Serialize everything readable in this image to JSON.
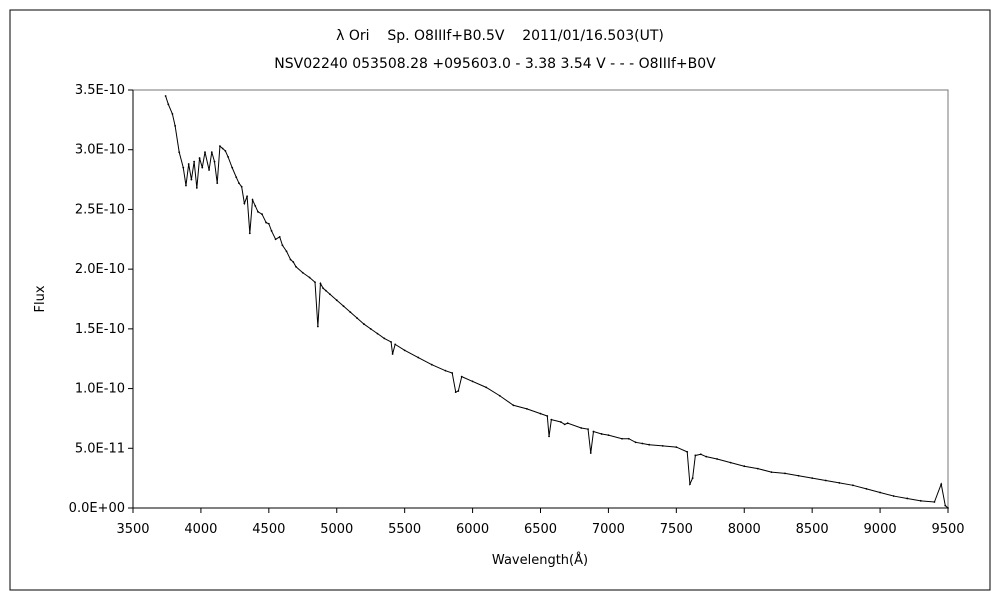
{
  "chart_data": {
    "type": "line",
    "title": "λ Ori    Sp. O8IIIf+B0.5V    2011/01/16.503(UT)",
    "subtitle": "NSV02240 053508.28 +095603.0 - 3.38 3.54 V - - - O8IIIf+B0V",
    "xlabel": "Wavelength(Å)",
    "ylabel": "Flux",
    "xlim": [
      3500,
      9500
    ],
    "ylim": [
      0,
      3.5e-10
    ],
    "x_ticks": [
      3500,
      4000,
      4500,
      5000,
      5500,
      6000,
      6500,
      7000,
      7500,
      8000,
      8500,
      9000,
      9500
    ],
    "x_tick_labels": [
      "3500",
      "4000",
      "4500",
      "5000",
      "5500",
      "6000",
      "6500",
      "7000",
      "7500",
      "8000",
      "8500",
      "9000",
      "9500"
    ],
    "y_ticks": [
      0,
      5e-11,
      1e-10,
      1.5e-10,
      2e-10,
      2.5e-10,
      3e-10,
      3.5e-10
    ],
    "y_tick_labels": [
      "0.0E+00",
      "5.0E-11",
      "1.0E-10",
      "1.5E-10",
      "2.0E-10",
      "2.5E-10",
      "3.0E-10",
      "3.5E-10"
    ],
    "grid": false,
    "line_color": "#000000",
    "series": [
      {
        "x": [
          3740,
          3760,
          3790,
          3810,
          3840,
          3870,
          3890,
          3910,
          3930,
          3950,
          3970,
          3990,
          4010,
          4030,
          4060,
          4080,
          4100,
          4120,
          4140,
          4160,
          4180,
          4200,
          4230,
          4260,
          4280,
          4300,
          4320,
          4340,
          4360,
          4380,
          4400,
          4420,
          4450,
          4480,
          4500,
          4520,
          4550,
          4580,
          4600,
          4630,
          4660,
          4680,
          4700,
          4750,
          4800,
          4840,
          4861,
          4880,
          4900,
          4920,
          4950,
          5000,
          5050,
          5100,
          5150,
          5200,
          5250,
          5300,
          5350,
          5400,
          5411,
          5430,
          5500,
          5600,
          5700,
          5800,
          5850,
          5876,
          5895,
          5920,
          6000,
          6100,
          6200,
          6300,
          6400,
          6500,
          6550,
          6563,
          6580,
          6650,
          6678,
          6700,
          6800,
          6850,
          6870,
          6890,
          6950,
          7000,
          7100,
          7150,
          7200,
          7250,
          7300,
          7400,
          7500,
          7580,
          7600,
          7620,
          7640,
          7680,
          7720,
          7800,
          7900,
          8000,
          8100,
          8200,
          8300,
          8400,
          8500,
          8600,
          8700,
          8800,
          8900,
          9000,
          9100,
          9200,
          9300,
          9400,
          9450,
          9480,
          9500
        ],
        "y": [
          3.45e-10,
          3.38e-10,
          3.3e-10,
          3.2e-10,
          2.98e-10,
          2.85e-10,
          2.7e-10,
          2.88e-10,
          2.75e-10,
          2.9e-10,
          2.68e-10,
          2.93e-10,
          2.85e-10,
          2.98e-10,
          2.83e-10,
          2.98e-10,
          2.9e-10,
          2.72e-10,
          3.03e-10,
          3.01e-10,
          2.99e-10,
          2.94e-10,
          2.85e-10,
          2.77e-10,
          2.72e-10,
          2.69e-10,
          2.55e-10,
          2.61e-10,
          2.3e-10,
          2.58e-10,
          2.53e-10,
          2.48e-10,
          2.46e-10,
          2.39e-10,
          2.38e-10,
          2.32e-10,
          2.25e-10,
          2.27e-10,
          2.2e-10,
          2.15e-10,
          2.08e-10,
          2.06e-10,
          2.02e-10,
          1.97e-10,
          1.93e-10,
          1.89e-10,
          1.52e-10,
          1.88e-10,
          1.84e-10,
          1.82e-10,
          1.79e-10,
          1.74e-10,
          1.69e-10,
          1.64e-10,
          1.59e-10,
          1.54e-10,
          1.5e-10,
          1.46e-10,
          1.42e-10,
          1.39e-10,
          1.29e-10,
          1.37e-10,
          1.32e-10,
          1.26e-10,
          1.2e-10,
          1.15e-10,
          1.13e-10,
          9.7e-11,
          9.8e-11,
          1.1e-10,
          1.06e-10,
          1.01e-10,
          9.4e-11,
          8.6e-11,
          8.3e-11,
          7.9e-11,
          7.7e-11,
          6e-11,
          7.4e-11,
          7.2e-11,
          7e-11,
          7.1e-11,
          6.7e-11,
          6.6e-11,
          4.6e-11,
          6.4e-11,
          6.2e-11,
          6.1e-11,
          5.8e-11,
          5.8e-11,
          5.5e-11,
          5.4e-11,
          5.3e-11,
          5.2e-11,
          5.1e-11,
          4.7e-11,
          2e-11,
          2.5e-11,
          4.4e-11,
          4.5e-11,
          4.3e-11,
          4.1e-11,
          3.8e-11,
          3.5e-11,
          3.3e-11,
          3e-11,
          2.9e-11,
          2.7e-11,
          2.5e-11,
          2.3e-11,
          2.1e-11,
          1.9e-11,
          1.6e-11,
          1.3e-11,
          1e-11,
          8e-12,
          6e-12,
          5e-12,
          2e-11,
          2e-12,
          0.0
        ]
      }
    ]
  }
}
